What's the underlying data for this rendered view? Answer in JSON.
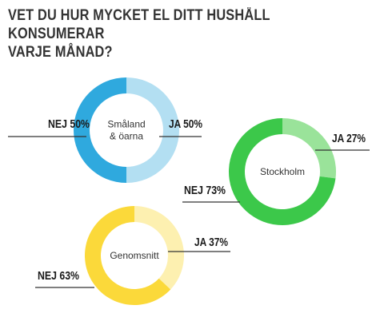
{
  "title_line1": "VET DU HUR MYCKET EL DITT HUSHÅLL KONSUMERAR",
  "title_line2": "VARJE MÅNAD?",
  "chart_data": [
    {
      "type": "pie",
      "title": "Småland & öarna",
      "title_lines": [
        "Småland",
        "& öarna"
      ],
      "categories": [
        "JA",
        "NEJ"
      ],
      "values": [
        50,
        50
      ],
      "labels": [
        "JA 50%",
        "NEJ 50%"
      ],
      "colors": [
        "#b3dff2",
        "#2fa9de"
      ]
    },
    {
      "type": "pie",
      "title": "Stockholm",
      "title_lines": [
        "Stockholm"
      ],
      "categories": [
        "JA",
        "NEJ"
      ],
      "values": [
        27,
        73
      ],
      "labels": [
        "JA 27%",
        "NEJ 73%"
      ],
      "colors": [
        "#9ae39a",
        "#3cc84a"
      ]
    },
    {
      "type": "pie",
      "title": "Genomsnitt",
      "title_lines": [
        "Genomsnitt"
      ],
      "categories": [
        "JA",
        "NEJ"
      ],
      "values": [
        37,
        63
      ],
      "labels": [
        "JA 37%",
        "NEJ 63%"
      ],
      "colors": [
        "#fdf0b0",
        "#fbd93a"
      ]
    }
  ]
}
